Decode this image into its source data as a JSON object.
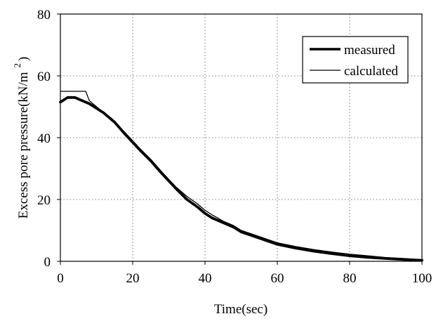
{
  "chart_data": {
    "type": "line",
    "xlabel": "Time(sec)",
    "ylabel_main": "Excess pore pressure(kN/m",
    "ylabel_sup": "2",
    "ylabel_close": ")",
    "xlim": [
      0,
      100
    ],
    "ylim": [
      0,
      80
    ],
    "x_ticks": [
      "0",
      "20",
      "40",
      "60",
      "80",
      "100"
    ],
    "y_ticks": [
      "0",
      "20",
      "40",
      "60",
      "80"
    ],
    "grid": "dotted",
    "legend_position": "top-right",
    "series": [
      {
        "name": "measured",
        "color": "#000000",
        "style": "thick",
        "x": [
          0,
          2,
          4,
          6,
          8,
          10,
          12,
          15,
          18,
          20,
          22,
          25,
          28,
          30,
          32,
          35,
          38,
          40,
          42,
          45,
          48,
          50,
          55,
          60,
          65,
          70,
          75,
          80,
          85,
          90,
          95,
          100
        ],
        "y": [
          51.5,
          53,
          53,
          52,
          51,
          49.5,
          48,
          45,
          41,
          38.5,
          36,
          32.5,
          28.5,
          26,
          23.5,
          20,
          17.5,
          15.5,
          14,
          12.5,
          11,
          9.5,
          7.5,
          5.5,
          4.3,
          3.3,
          2.5,
          1.8,
          1.3,
          0.9,
          0.6,
          0.3
        ]
      },
      {
        "name": "calculated",
        "color": "#000000",
        "style": "thin",
        "x": [
          0,
          7,
          8,
          10,
          12,
          15,
          18,
          20,
          22,
          25,
          28,
          30,
          32,
          35,
          38,
          40,
          42,
          45,
          48,
          50,
          55,
          60,
          65,
          70,
          75,
          80,
          85,
          90,
          95,
          100
        ],
        "y": [
          55,
          55,
          52,
          50,
          48,
          45,
          41.5,
          39,
          36.5,
          33,
          29,
          26.5,
          24,
          21,
          18.5,
          16.5,
          15,
          13,
          11.5,
          10,
          8,
          6,
          4.8,
          3.8,
          3,
          2.3,
          1.8,
          1.2,
          0.9,
          0.5
        ]
      }
    ]
  }
}
